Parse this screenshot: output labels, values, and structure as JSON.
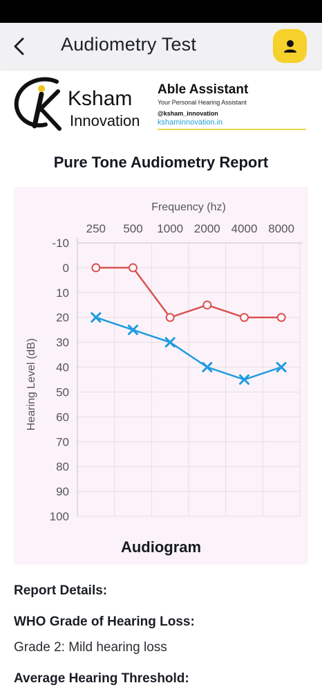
{
  "app_bar": {
    "title": "Audiometry Test"
  },
  "brand": {
    "logo_text_1": "Ksham",
    "logo_text_2": "Innovation",
    "assistant_title": "Able Assistant",
    "assistant_subtitle": "Your Personal Hearing Assistant",
    "handle": "@ksham_innovation",
    "website": "kshaminnovation.in"
  },
  "report": {
    "title": "Pure Tone Audiometry Report",
    "details_heading": "Report Details:",
    "who_label": "WHO Grade of Hearing Loss:",
    "who_value": "Grade 2: Mild hearing loss",
    "average_label": "Average Hearing Threshold:"
  },
  "colors": {
    "accent": "#f6d12b",
    "right_ear": "#d9534f",
    "left_ear": "#1e9be0",
    "card_bg": "#fcf3fa"
  },
  "chart_data": {
    "type": "line",
    "title": "Audiogram",
    "xlabel": "Frequency (hz)",
    "ylabel": "Hearing Level (dB)",
    "categories": [
      "250",
      "500",
      "1000",
      "2000",
      "4000",
      "8000"
    ],
    "y_ticks": [
      -10,
      0,
      10,
      20,
      30,
      40,
      50,
      60,
      70,
      80,
      90,
      100
    ],
    "ylim": [
      -10,
      100
    ],
    "y_inverted": true,
    "grid": true,
    "legend": "none",
    "series": [
      {
        "marker": "circle",
        "color": "#d9534f",
        "values": [
          0,
          0,
          20,
          15,
          20,
          20
        ]
      },
      {
        "marker": "cross",
        "color": "#1e9be0",
        "values": [
          20,
          25,
          30,
          40,
          45,
          40
        ]
      }
    ]
  }
}
